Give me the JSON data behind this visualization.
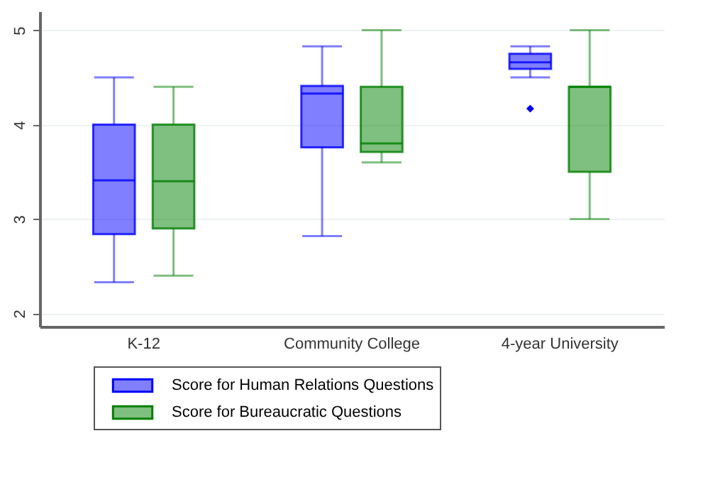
{
  "chart_data": {
    "type": "box",
    "categories": [
      "K-12",
      "Community College",
      "4-year University"
    ],
    "series": [
      {
        "name": "Score for Human Relations Questions",
        "color": "#0000ff",
        "boxes": [
          {
            "low": 2.33,
            "q1": 2.84,
            "median": 3.41,
            "q3": 4.0,
            "high": 4.5
          },
          {
            "low": 2.82,
            "q1": 3.76,
            "median": 4.33,
            "q3": 4.41,
            "high": 4.83
          },
          {
            "low": 4.5,
            "q1": 4.59,
            "median": 4.66,
            "q3": 4.75,
            "high": 4.83,
            "outliers": [
              4.17
            ]
          }
        ]
      },
      {
        "name": "Score for Bureaucratic Questions",
        "color": "#008000",
        "boxes": [
          {
            "low": 2.4,
            "q1": 2.9,
            "median": 3.4,
            "q3": 4.0,
            "high": 4.4
          },
          {
            "low": 3.6,
            "q1": 3.71,
            "median": 3.8,
            "q3": 4.4,
            "high": 5.0
          },
          {
            "low": 3.0,
            "q1": 3.5,
            "median": 4.4,
            "q3": 4.4,
            "high": 5.0
          }
        ]
      }
    ],
    "ylim": [
      1.86,
      5.2
    ],
    "yticks": [
      2,
      3,
      4,
      5
    ],
    "grid": "y",
    "legend": "bottom"
  }
}
